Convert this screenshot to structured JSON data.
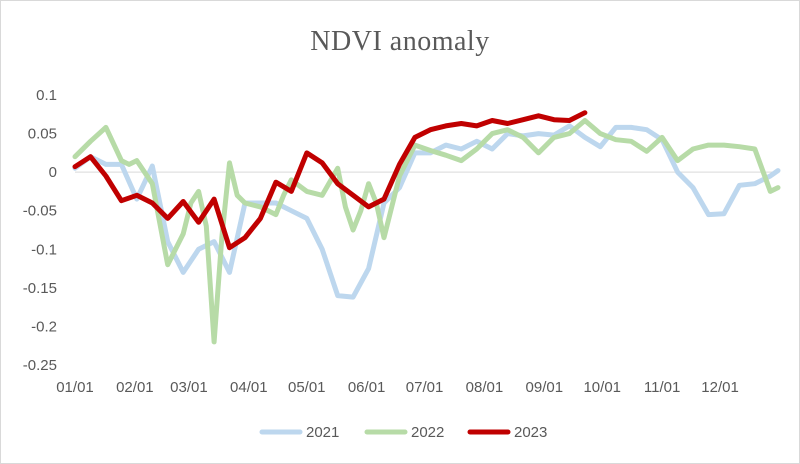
{
  "chart_data": {
    "type": "line",
    "title": "NDVI anomaly",
    "xlabel": "",
    "ylabel": "",
    "ylim": [
      -0.25,
      0.1
    ],
    "yticks": [
      0.1,
      0.05,
      0,
      -0.05,
      -0.1,
      -0.15,
      -0.2,
      -0.25
    ],
    "ytick_labels": [
      "0.1",
      "0.05",
      "0",
      "-0.05",
      "-0.1",
      "-0.15",
      "-0.2",
      "-0.25"
    ],
    "xtick_labels": [
      "01/01",
      "02/01",
      "03/01",
      "04/01",
      "05/01",
      "06/01",
      "07/01",
      "08/01",
      "09/01",
      "10/01",
      "11/01",
      "12/01"
    ],
    "xlim_days": [
      1,
      365
    ],
    "legend_position": "bottom",
    "grid": "none",
    "series": [
      {
        "name": "2021",
        "color": "#bdd7ee",
        "x_days": [
          1,
          9,
          17,
          25,
          33,
          41,
          49,
          57,
          65,
          73,
          81,
          89,
          97,
          105,
          113,
          121,
          129,
          137,
          145,
          153,
          161,
          169,
          177,
          185,
          193,
          201,
          209,
          217,
          225,
          233,
          241,
          249,
          257,
          265,
          273,
          281,
          289,
          297,
          305,
          313,
          321,
          329,
          337,
          345,
          353,
          361,
          365
        ],
        "values": [
          0.005,
          0.02,
          0.01,
          0.01,
          -0.035,
          0.008,
          -0.09,
          -0.13,
          -0.1,
          -0.09,
          -0.13,
          -0.04,
          -0.04,
          -0.04,
          -0.05,
          -0.06,
          -0.1,
          -0.16,
          -0.162,
          -0.125,
          -0.04,
          -0.02,
          0.025,
          0.025,
          0.035,
          0.03,
          0.04,
          0.03,
          0.05,
          0.047,
          0.05,
          0.048,
          0.06,
          0.045,
          0.033,
          0.058,
          0.058,
          0.055,
          0.042,
          0.0,
          -0.02,
          -0.055,
          -0.054,
          -0.017,
          -0.015,
          -0.005,
          0.002
        ]
      },
      {
        "name": "2022",
        "color": "#b7dba7",
        "x_days": [
          1,
          9,
          17,
          25,
          29,
          33,
          41,
          49,
          57,
          61,
          65,
          69,
          73,
          77,
          81,
          85,
          89,
          97,
          105,
          109,
          113,
          121,
          129,
          137,
          141,
          145,
          149,
          153,
          157,
          161,
          169,
          177,
          185,
          193,
          201,
          209,
          217,
          225,
          233,
          241,
          249,
          257,
          265,
          273,
          281,
          289,
          297,
          305,
          313,
          321,
          329,
          337,
          345,
          353,
          361,
          365
        ],
        "values": [
          0.02,
          0.04,
          0.058,
          0.015,
          0.01,
          0.015,
          -0.015,
          -0.12,
          -0.08,
          -0.04,
          -0.025,
          -0.07,
          -0.22,
          -0.085,
          0.012,
          -0.03,
          -0.04,
          -0.045,
          -0.055,
          -0.03,
          -0.01,
          -0.025,
          -0.03,
          0.005,
          -0.045,
          -0.075,
          -0.05,
          -0.015,
          -0.04,
          -0.085,
          -0.005,
          0.035,
          0.028,
          0.022,
          0.015,
          0.03,
          0.05,
          0.055,
          0.045,
          0.025,
          0.045,
          0.05,
          0.067,
          0.05,
          0.042,
          0.04,
          0.027,
          0.045,
          0.015,
          0.03,
          0.035,
          0.035,
          0.033,
          0.03,
          -0.025,
          -0.02
        ]
      },
      {
        "name": "2023",
        "color": "#c00000",
        "x_days": [
          1,
          9,
          17,
          25,
          33,
          41,
          49,
          57,
          65,
          73,
          81,
          89,
          97,
          105,
          113,
          121,
          129,
          137,
          145,
          153,
          161,
          169,
          177,
          185,
          193,
          201,
          209,
          217,
          225,
          233,
          241,
          249,
          257,
          265
        ],
        "values": [
          0.007,
          0.02,
          -0.005,
          -0.037,
          -0.03,
          -0.04,
          -0.06,
          -0.038,
          -0.065,
          -0.035,
          -0.098,
          -0.085,
          -0.06,
          -0.013,
          -0.025,
          0.025,
          0.012,
          -0.015,
          -0.03,
          -0.045,
          -0.035,
          0.01,
          0.045,
          0.055,
          0.06,
          0.063,
          0.06,
          0.067,
          0.063,
          0.068,
          0.073,
          0.068,
          0.067,
          0.077
        ]
      }
    ]
  }
}
